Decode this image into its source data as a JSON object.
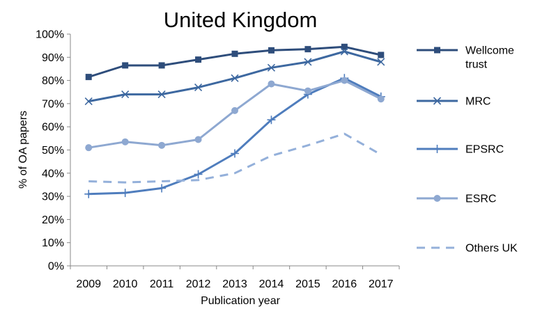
{
  "chart_data": {
    "type": "line",
    "title": "United Kingdom",
    "xlabel": "Publication year",
    "ylabel": "% of OA papers",
    "categories": [
      "2009",
      "2010",
      "2011",
      "2012",
      "2013",
      "2014",
      "2015",
      "2016",
      "2017"
    ],
    "ylim": [
      0,
      100
    ],
    "yticks": [
      "0%",
      "10%",
      "20%",
      "30%",
      "40%",
      "50%",
      "60%",
      "70%",
      "80%",
      "90%",
      "100%"
    ],
    "grid": false,
    "legend_position": "right",
    "series": [
      {
        "name": "Wellcome trust",
        "label_lines": [
          "Wellcome",
          "trust"
        ],
        "color": "#2E4D7B",
        "marker": "square",
        "dash": "solid",
        "values": [
          81.5,
          86.5,
          86.5,
          89,
          91.5,
          93,
          93.5,
          94.5,
          91
        ]
      },
      {
        "name": "MRC",
        "label_lines": [
          "MRC"
        ],
        "color": "#3D68A0",
        "marker": "x",
        "dash": "solid",
        "values": [
          71,
          74,
          74,
          77,
          81,
          85.5,
          88,
          92.5,
          88
        ]
      },
      {
        "name": "EPSRC",
        "label_lines": [
          "EPSRC"
        ],
        "color": "#4F7DBD",
        "marker": "plus",
        "dash": "solid",
        "values": [
          31,
          31.5,
          33.5,
          39.5,
          48.5,
          63,
          74,
          81,
          73
        ]
      },
      {
        "name": "ESRC",
        "label_lines": [
          "ESRC"
        ],
        "color": "#8EA8D1",
        "marker": "circle",
        "dash": "solid",
        "values": [
          51,
          53.5,
          52,
          54.5,
          67,
          78.5,
          75.5,
          80,
          72
        ]
      },
      {
        "name": "Others UK",
        "label_lines": [
          "Others UK"
        ],
        "color": "#94B0DA",
        "marker": "none",
        "dash": "dashed",
        "values": [
          36.5,
          36,
          36.5,
          37,
          40,
          47.5,
          52,
          57,
          48
        ]
      }
    ]
  }
}
